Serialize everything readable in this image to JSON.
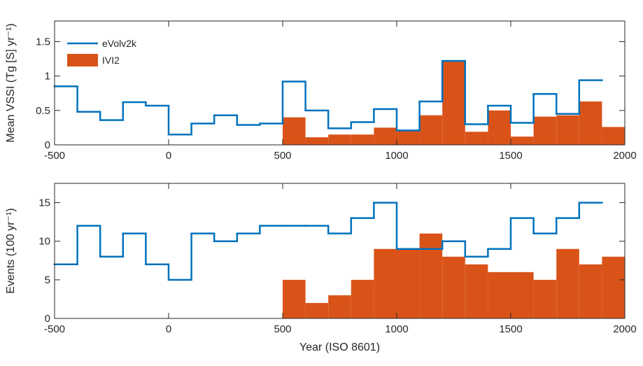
{
  "chart_data": [
    {
      "type": "step-histogram",
      "ylabel": "Mean VSSI (Tg [S] yr⁻¹)",
      "xlim": [
        -500,
        2000
      ],
      "xticks": [
        -500,
        0,
        500,
        1000,
        1500,
        2000
      ],
      "ylim": [
        0,
        1.8
      ],
      "yticks": [
        0,
        0.5,
        1,
        1.5
      ],
      "legend": "upper left",
      "series": [
        {
          "name": "eVolv2k",
          "color": "#0072bd",
          "style": "step",
          "bins": [
            -500,
            -400,
            -300,
            -200,
            -100,
            0,
            100,
            200,
            300,
            400,
            500,
            600,
            700,
            800,
            900,
            1000,
            1100,
            1200,
            1300,
            1400,
            1500,
            1600,
            1700,
            1800,
            1900
          ],
          "values": [
            0.85,
            0.48,
            0.36,
            0.62,
            0.57,
            0.15,
            0.31,
            0.43,
            0.29,
            0.31,
            0.92,
            0.5,
            0.24,
            0.33,
            0.52,
            0.21,
            0.63,
            1.22,
            0.3,
            0.57,
            0.32,
            0.74,
            0.45,
            0.94
          ]
        },
        {
          "name": "IVI2",
          "color": "#d95319",
          "style": "bar",
          "bins": [
            500,
            600,
            700,
            800,
            900,
            1000,
            1100,
            1200,
            1300,
            1400,
            1500,
            1600,
            1700,
            1800,
            1900,
            2000
          ],
          "values": [
            0.4,
            0.11,
            0.15,
            0.15,
            0.25,
            0.2,
            0.43,
            1.21,
            0.19,
            0.5,
            0.12,
            0.41,
            0.43,
            0.63,
            0.26
          ]
        }
      ]
    },
    {
      "type": "step-histogram",
      "ylabel": "Events (100 yr⁻¹)",
      "xlabel": "Year (ISO 8601)",
      "xlim": [
        -500,
        2000
      ],
      "xticks": [
        -500,
        0,
        500,
        1000,
        1500,
        2000
      ],
      "ylim": [
        0,
        17.5
      ],
      "yticks": [
        0,
        5,
        10,
        15
      ],
      "series": [
        {
          "color": "#0072bd",
          "style": "step",
          "bins": [
            -500,
            -400,
            -300,
            -200,
            -100,
            0,
            100,
            200,
            300,
            400,
            500,
            600,
            700,
            800,
            900,
            1000,
            1100,
            1200,
            1300,
            1400,
            1500,
            1600,
            1700,
            1800,
            1900
          ],
          "values": [
            7,
            12,
            8,
            11,
            7,
            5,
            11,
            10,
            11,
            12,
            12,
            12,
            11,
            13,
            15,
            9,
            9,
            10,
            8,
            9,
            13,
            11,
            13,
            15
          ]
        },
        {
          "color": "#d95319",
          "style": "bar",
          "bins": [
            500,
            600,
            700,
            800,
            900,
            1000,
            1100,
            1200,
            1300,
            1400,
            1500,
            1600,
            1700,
            1800,
            1900,
            2000
          ],
          "values": [
            5,
            2,
            3,
            5,
            9,
            9,
            11,
            8,
            7,
            6,
            6,
            5,
            9,
            7,
            8
          ]
        }
      ]
    }
  ]
}
